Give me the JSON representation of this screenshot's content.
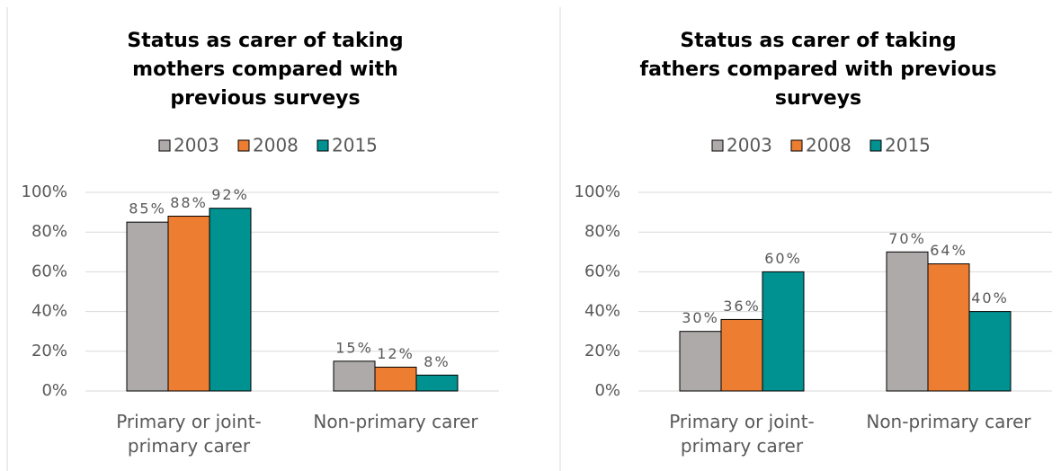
{
  "chart_data": [
    {
      "type": "bar",
      "title": "Status as carer of taking mothers compared with previous surveys",
      "categories": [
        "Primary or joint-primary carer",
        "Non-primary carer"
      ],
      "series": [
        {
          "name": "2003",
          "color": "#aeaaaa",
          "values": [
            85,
            15
          ],
          "value_labels": [
            "85%",
            "15%"
          ]
        },
        {
          "name": "2008",
          "color": "#ed7d31",
          "values": [
            88,
            12
          ],
          "value_labels": [
            "88%",
            "12%"
          ]
        },
        {
          "name": "2015",
          "color": "#009191",
          "values": [
            92,
            8
          ],
          "value_labels": [
            "92%",
            "8%"
          ]
        }
      ],
      "ylim": [
        0,
        100
      ],
      "yticks": [
        {
          "value": 0,
          "label": "0%"
        },
        {
          "value": 20,
          "label": "20%"
        },
        {
          "value": 40,
          "label": "40%"
        },
        {
          "value": 60,
          "label": "60%"
        },
        {
          "value": 80,
          "label": "80%"
        },
        {
          "value": 100,
          "label": "100%"
        }
      ],
      "grid": true,
      "legend": "top"
    },
    {
      "type": "bar",
      "title": "Status as carer of taking fathers compared with previous surveys",
      "categories": [
        "Primary or joint-primary carer",
        "Non-primary carer"
      ],
      "series": [
        {
          "name": "2003",
          "color": "#aeaaaa",
          "values": [
            30,
            70
          ],
          "value_labels": [
            "30%",
            "70%"
          ]
        },
        {
          "name": "2008",
          "color": "#ed7d31",
          "values": [
            36,
            64
          ],
          "value_labels": [
            "36%",
            "64%"
          ]
        },
        {
          "name": "2015",
          "color": "#009191",
          "values": [
            60,
            40
          ],
          "value_labels": [
            "60%",
            "40%"
          ]
        }
      ],
      "ylim": [
        0,
        100
      ],
      "yticks": [
        {
          "value": 0,
          "label": "0%"
        },
        {
          "value": 20,
          "label": "20%"
        },
        {
          "value": 40,
          "label": "40%"
        },
        {
          "value": 60,
          "label": "60%"
        },
        {
          "value": 80,
          "label": "80%"
        },
        {
          "value": 100,
          "label": "100%"
        }
      ],
      "grid": true,
      "legend": "top"
    }
  ]
}
